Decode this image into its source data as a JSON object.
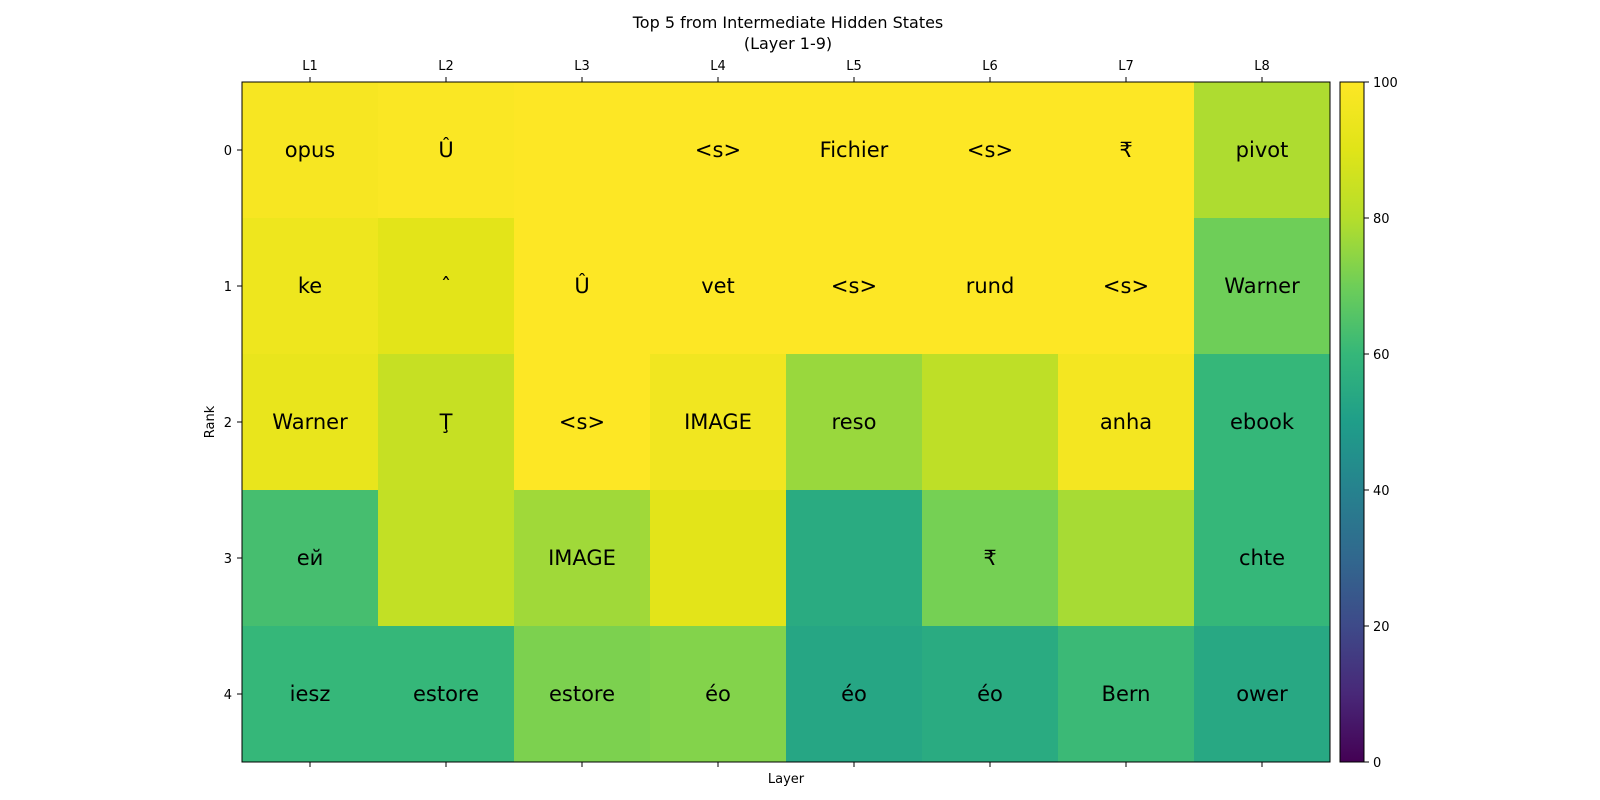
{
  "chart_data": {
    "type": "heatmap",
    "title": "Top 5 from Intermediate Hidden States",
    "subtitle": "(Layer 1-9)",
    "xlabel": "Layer",
    "ylabel": "Rank",
    "x_tick_labels": [
      "L1",
      "L2",
      "L3",
      "L4",
      "L5",
      "L6",
      "L7",
      "L8"
    ],
    "y_tick_labels": [
      "0",
      "1",
      "2",
      "3",
      "4"
    ],
    "cell_text": [
      [
        "opus",
        "Û",
        "",
        "<s>",
        "Fichier",
        "<s>",
        "₹",
        "pivot"
      ],
      [
        "ke",
        "ˆ",
        "Û",
        "vet",
        "<s>",
        "rund",
        "<s>",
        "Warner"
      ],
      [
        "Warner",
        "Ţ",
        "<s>",
        "IMAGE",
        "reso",
        "",
        "anha",
        "ebook"
      ],
      [
        "ей",
        "",
        "IMAGE",
        "",
        "",
        "₹",
        "",
        "chte"
      ],
      [
        "iesz",
        "estore",
        "estore",
        "éo",
        "éo",
        "éo",
        "Bern",
        "ower"
      ]
    ],
    "values": [
      [
        98,
        99,
        100,
        100,
        100,
        100,
        100,
        79
      ],
      [
        95,
        91,
        100,
        100,
        100,
        100,
        100,
        70
      ],
      [
        93,
        84,
        100,
        96,
        76,
        82,
        97,
        60
      ],
      [
        63,
        83,
        77,
        91,
        55,
        71,
        78,
        60
      ],
      [
        60,
        60,
        72,
        73,
        53,
        55,
        61,
        54
      ]
    ],
    "colorbar": {
      "min": 0,
      "max": 100,
      "ticks": [
        0,
        20,
        40,
        60,
        80,
        100
      ]
    },
    "colormap": "viridis",
    "grid": false,
    "legend": "none"
  }
}
